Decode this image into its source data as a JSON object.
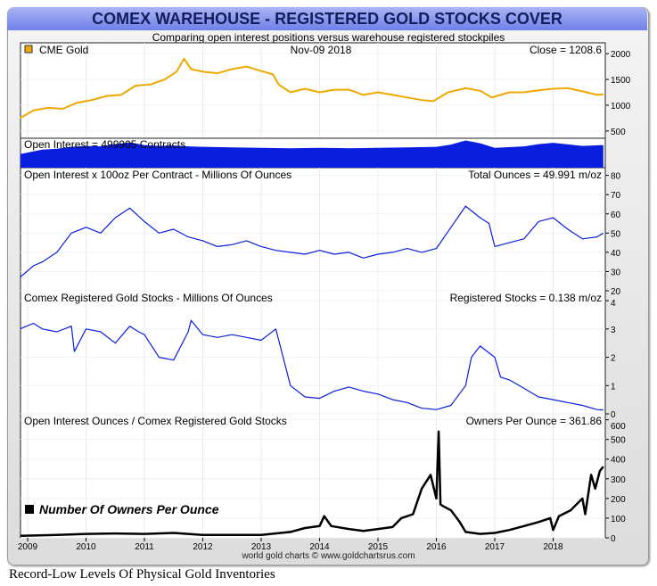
{
  "title": "COMEX WAREHOUSE - REGISTERED GOLD STOCKS COVER",
  "subtitle": "Comparing open interest positions versus warehouse registered stockpiles",
  "footer": "world gold charts © www.goldchartsrus.com",
  "caption": "Record-Low Levels Of Physical Gold Inventories",
  "colors": {
    "gold": "#f0a800",
    "oi": "#0a1ee0",
    "black": "#000000",
    "title_bar": "#8796ee"
  },
  "chart_data": [
    {
      "type": "line",
      "legend": "CME Gold",
      "date": "Nov-09  2018",
      "readout": "Close = 1208.6",
      "yticks": [
        2000,
        1500,
        1000,
        500
      ],
      "ylim": [
        360,
        2210
      ],
      "x": [
        2008.87,
        2009.1,
        2009.35,
        2009.6,
        2009.85,
        2010.1,
        2010.35,
        2010.6,
        2010.85,
        2011.1,
        2011.35,
        2011.55,
        2011.68,
        2011.8,
        2012.0,
        2012.25,
        2012.5,
        2012.75,
        2012.95,
        2013.2,
        2013.3,
        2013.5,
        2013.75,
        2014.0,
        2014.25,
        2014.5,
        2014.75,
        2015.0,
        2015.25,
        2015.5,
        2015.75,
        2015.95,
        2016.2,
        2016.5,
        2016.75,
        2016.95,
        2017.25,
        2017.5,
        2017.75,
        2018.0,
        2018.25,
        2018.5,
        2018.75,
        2018.86
      ],
      "y": [
        750,
        900,
        950,
        930,
        1050,
        1100,
        1180,
        1200,
        1380,
        1400,
        1500,
        1650,
        1900,
        1700,
        1650,
        1620,
        1700,
        1750,
        1680,
        1600,
        1400,
        1250,
        1320,
        1250,
        1300,
        1300,
        1200,
        1250,
        1200,
        1150,
        1100,
        1080,
        1250,
        1330,
        1280,
        1150,
        1250,
        1250,
        1290,
        1320,
        1330,
        1270,
        1200,
        1210
      ]
    },
    {
      "type": "area",
      "label": "Open Interest = 499905 Contracts",
      "x": [
        2008.87,
        2009.25,
        2009.5,
        2009.75,
        2010.0,
        2010.25,
        2010.5,
        2010.75,
        2011.0,
        2011.25,
        2011.5,
        2011.75,
        2012.0,
        2012.5,
        2013.0,
        2013.5,
        2014.0,
        2014.5,
        2015.0,
        2015.5,
        2016.0,
        2016.25,
        2016.5,
        2016.75,
        2017.0,
        2017.5,
        2017.75,
        2018.0,
        2018.5,
        2018.86
      ],
      "y": [
        300000,
        400000,
        420000,
        460000,
        480000,
        470000,
        520000,
        560000,
        500000,
        480000,
        490000,
        470000,
        460000,
        450000,
        440000,
        430000,
        440000,
        430000,
        440000,
        450000,
        460000,
        510000,
        600000,
        540000,
        440000,
        470000,
        520000,
        550000,
        480000,
        499905
      ]
    },
    {
      "type": "line",
      "label": "Open Interest x 100oz Per Contract - Millions Of Ounces",
      "readout": "Total Ounces = 49.991 m/oz",
      "yticks": [
        80,
        70,
        60,
        50,
        40,
        30,
        20
      ],
      "ylim": [
        20,
        84
      ],
      "x": [
        2008.87,
        2009.1,
        2009.25,
        2009.5,
        2009.75,
        2010.0,
        2010.25,
        2010.5,
        2010.75,
        2011.0,
        2011.25,
        2011.5,
        2011.75,
        2012.0,
        2012.25,
        2012.5,
        2012.75,
        2013.0,
        2013.25,
        2013.5,
        2013.75,
        2014.0,
        2014.25,
        2014.5,
        2014.75,
        2015.0,
        2015.25,
        2015.5,
        2015.75,
        2016.0,
        2016.25,
        2016.5,
        2016.75,
        2016.9,
        2017.0,
        2017.25,
        2017.5,
        2017.75,
        2018.0,
        2018.25,
        2018.5,
        2018.75,
        2018.86
      ],
      "y": [
        27,
        33,
        35,
        40,
        50,
        53,
        50,
        58,
        63,
        56,
        50,
        52,
        48,
        46,
        43,
        44,
        46,
        43,
        41,
        40,
        39,
        41,
        39,
        40,
        37,
        39,
        40,
        42,
        40,
        42,
        53,
        64,
        58,
        55,
        43,
        45,
        47,
        56,
        58,
        52,
        47,
        48,
        50
      ]
    },
    {
      "type": "line",
      "label": "Comex Registered Gold Stocks - Millions Of Ounces",
      "readout": "Registered Stocks = 0.138 m/oz",
      "yticks": [
        4,
        3,
        2,
        1,
        0
      ],
      "ylim": [
        0,
        4.35
      ],
      "x": [
        2008.87,
        2009.1,
        2009.25,
        2009.5,
        2009.75,
        2009.8,
        2010.0,
        2010.25,
        2010.5,
        2010.75,
        2010.9,
        2011.0,
        2011.25,
        2011.5,
        2011.75,
        2011.8,
        2012.0,
        2012.25,
        2012.5,
        2012.75,
        2013.0,
        2013.25,
        2013.5,
        2013.75,
        2014.0,
        2014.25,
        2014.5,
        2014.75,
        2015.0,
        2015.25,
        2015.5,
        2015.75,
        2016.0,
        2016.25,
        2016.5,
        2016.6,
        2016.75,
        2017.0,
        2017.1,
        2017.25,
        2017.5,
        2017.75,
        2018.0,
        2018.25,
        2018.5,
        2018.75,
        2018.86
      ],
      "y": [
        3.0,
        3.2,
        3.0,
        2.9,
        3.1,
        2.2,
        3.0,
        2.9,
        2.5,
        3.1,
        2.9,
        2.8,
        2.0,
        1.9,
        2.9,
        3.3,
        2.8,
        2.7,
        2.8,
        2.7,
        2.6,
        3.0,
        1.0,
        0.6,
        0.55,
        0.8,
        0.95,
        0.8,
        0.7,
        0.5,
        0.4,
        0.2,
        0.15,
        0.3,
        1.0,
        2.0,
        2.4,
        2.0,
        1.3,
        1.2,
        0.9,
        0.6,
        0.5,
        0.4,
        0.3,
        0.15,
        0.138
      ]
    },
    {
      "type": "line",
      "label": "Open Interest Ounces / Comex Registered Gold Stocks",
      "readout": "Owners Per Ounce = 361.86",
      "legend": "Number Of Owners Per Ounce",
      "yticks": [
        600,
        500,
        400,
        300,
        200,
        100,
        0
      ],
      "ylim": [
        0,
        630
      ],
      "x": [
        2008.87,
        2009.5,
        2010.0,
        2010.5,
        2011.0,
        2011.5,
        2012.0,
        2012.5,
        2013.0,
        2013.5,
        2013.75,
        2014.0,
        2014.08,
        2014.2,
        2014.5,
        2014.75,
        2015.0,
        2015.25,
        2015.4,
        2015.6,
        2015.75,
        2015.9,
        2016.0,
        2016.04,
        2016.07,
        2016.12,
        2016.25,
        2016.4,
        2016.5,
        2016.75,
        2017.0,
        2017.25,
        2017.5,
        2017.75,
        2017.95,
        2018.0,
        2018.1,
        2018.3,
        2018.5,
        2018.55,
        2018.65,
        2018.72,
        2018.8,
        2018.86
      ],
      "y": [
        10,
        15,
        20,
        22,
        20,
        25,
        15,
        15,
        15,
        30,
        50,
        60,
        110,
        60,
        45,
        35,
        45,
        55,
        100,
        120,
        250,
        320,
        200,
        540,
        170,
        160,
        140,
        80,
        30,
        20,
        25,
        40,
        60,
        80,
        100,
        40,
        110,
        140,
        200,
        120,
        320,
        250,
        340,
        362
      ]
    },
    {
      "type": "axis",
      "xticks": [
        "2009",
        "2010",
        "2011",
        "2012",
        "2013",
        "2014",
        "2015",
        "2016",
        "2017",
        "2018"
      ]
    }
  ]
}
